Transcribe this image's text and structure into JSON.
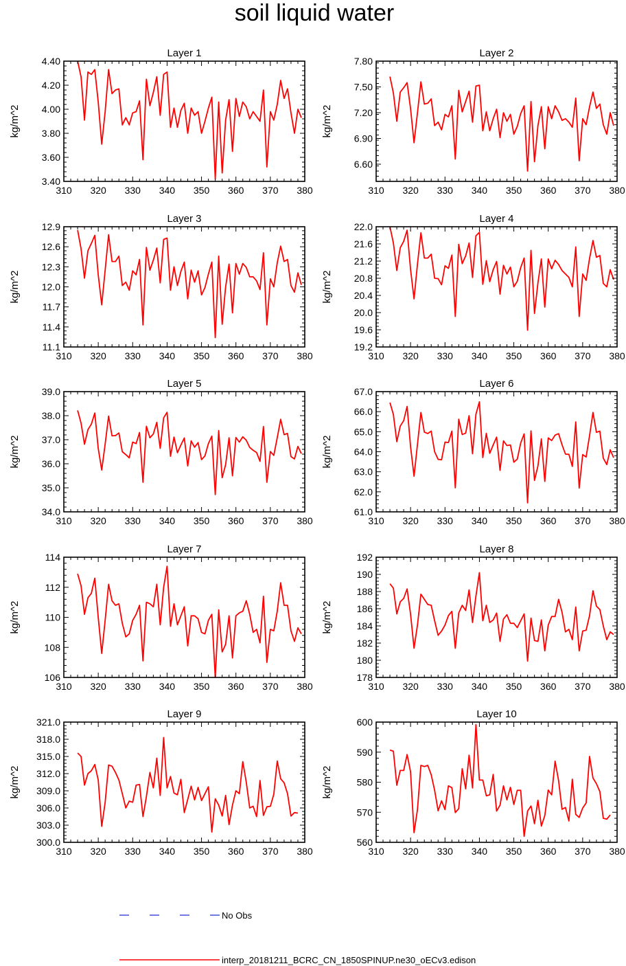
{
  "title": "soil liquid water",
  "legend": {
    "obs_label": "No Obs",
    "obs_color": "#1f2bd6",
    "model_label": "interp_20181211_BCRC_CN_1850SPINUP.ne30_oECv3.edison",
    "model_color": "#ff0000"
  },
  "chart_data": [
    {
      "type": "line",
      "title": "Layer 1",
      "ylabel": "kg/m^2",
      "xlim": [
        310,
        380
      ],
      "ylim": [
        3.4,
        4.4
      ],
      "xticks": [
        "310",
        "320",
        "330",
        "340",
        "350",
        "360",
        "370",
        "380"
      ],
      "yticks": [
        "3.40",
        "3.60",
        "3.80",
        "4.00",
        "4.20",
        "4.40"
      ],
      "x_start": 314,
      "values": [
        4.4,
        4.27,
        3.91,
        4.31,
        4.29,
        4.33,
        4.06,
        3.71,
        3.98,
        4.33,
        4.13,
        4.16,
        4.17,
        3.87,
        3.93,
        3.87,
        3.97,
        3.98,
        4.07,
        3.58,
        4.25,
        4.03,
        4.14,
        4.27,
        3.95,
        4.29,
        4.31,
        3.85,
        4.01,
        3.85,
        3.99,
        4.05,
        3.8,
        4.01,
        3.95,
        3.98,
        3.8,
        3.9,
        4.01,
        4.1,
        3.42,
        4.06,
        3.47,
        3.91,
        4.08,
        3.65,
        4.09,
        3.94,
        4.06,
        4.02,
        3.92,
        3.98,
        3.94,
        3.9,
        4.16,
        3.52,
        3.98,
        3.91,
        4.04,
        4.24,
        4.09,
        4.17,
        3.97,
        3.8,
        4.0,
        3.93
      ]
    },
    {
      "type": "line",
      "title": "Layer 2",
      "ylabel": "kg/m^2",
      "xlim": [
        310,
        380
      ],
      "ylim": [
        6.4,
        7.8
      ],
      "xticks": [
        "310",
        "320",
        "330",
        "340",
        "350",
        "360",
        "370",
        "380"
      ],
      "yticks": [
        "6.60",
        "6.90",
        "7.20",
        "7.50",
        "7.80"
      ],
      "x_start": 314,
      "values": [
        7.62,
        7.43,
        7.1,
        7.44,
        7.49,
        7.55,
        7.25,
        6.85,
        7.2,
        7.56,
        7.3,
        7.31,
        7.36,
        7.05,
        7.09,
        7.0,
        7.18,
        7.15,
        7.28,
        6.66,
        7.46,
        7.21,
        7.33,
        7.45,
        7.09,
        7.51,
        7.52,
        6.99,
        7.21,
        6.99,
        7.13,
        7.24,
        6.91,
        7.2,
        7.1,
        7.18,
        6.95,
        7.04,
        7.19,
        7.28,
        6.52,
        7.33,
        6.63,
        7.05,
        7.27,
        6.78,
        7.27,
        7.13,
        7.28,
        7.21,
        7.11,
        7.13,
        7.09,
        7.03,
        7.37,
        6.64,
        7.13,
        7.06,
        7.27,
        7.44,
        7.25,
        7.3,
        7.06,
        6.95,
        7.2,
        7.05
      ]
    },
    {
      "type": "line",
      "title": "Layer 3",
      "ylabel": "kg/m^2",
      "xlim": [
        310,
        380
      ],
      "ylim": [
        11.1,
        12.9
      ],
      "xticks": [
        "310",
        "320",
        "330",
        "340",
        "350",
        "360",
        "370",
        "380"
      ],
      "yticks": [
        "11.1",
        "11.4",
        "11.7",
        "12.0",
        "12.3",
        "12.6",
        "12.9"
      ],
      "x_start": 314,
      "values": [
        12.85,
        12.57,
        12.13,
        12.54,
        12.65,
        12.77,
        12.18,
        11.73,
        12.25,
        12.78,
        12.38,
        12.38,
        12.46,
        12.02,
        12.07,
        11.95,
        12.24,
        12.18,
        12.41,
        11.43,
        12.59,
        12.25,
        12.4,
        12.58,
        12.06,
        12.71,
        12.73,
        11.95,
        12.3,
        12.02,
        12.23,
        12.37,
        11.82,
        12.25,
        12.07,
        12.24,
        11.88,
        11.99,
        12.19,
        12.37,
        11.24,
        12.46,
        11.44,
        12.0,
        12.34,
        11.61,
        12.35,
        12.19,
        12.35,
        12.29,
        12.15,
        12.15,
        12.09,
        11.96,
        12.51,
        11.43,
        12.12,
        12.0,
        12.36,
        12.61,
        12.38,
        12.41,
        12.02,
        11.92,
        12.21,
        12.03
      ]
    },
    {
      "type": "line",
      "title": "Layer 4",
      "ylabel": "kg/m^2",
      "xlim": [
        310,
        380
      ],
      "ylim": [
        19.2,
        22.0
      ],
      "xticks": [
        "310",
        "320",
        "330",
        "340",
        "350",
        "360",
        "370",
        "380"
      ],
      "yticks": [
        "19.2",
        "19.6",
        "20.0",
        "20.4",
        "20.8",
        "21.2",
        "21.6",
        "22.0"
      ],
      "x_start": 314,
      "values": [
        22.0,
        21.62,
        20.98,
        21.51,
        21.66,
        21.92,
        21.01,
        20.32,
        21.13,
        21.86,
        21.27,
        21.27,
        21.36,
        20.8,
        20.79,
        20.65,
        21.09,
        21.03,
        21.34,
        19.91,
        21.59,
        21.14,
        21.32,
        21.62,
        20.82,
        21.79,
        21.87,
        20.66,
        21.21,
        20.72,
        21.0,
        21.19,
        20.43,
        21.1,
        20.9,
        21.06,
        20.6,
        20.73,
        21.05,
        21.27,
        19.59,
        21.45,
        19.98,
        20.69,
        21.25,
        20.13,
        21.25,
        21.02,
        21.22,
        21.12,
        20.98,
        20.9,
        20.82,
        20.6,
        21.53,
        19.91,
        20.9,
        20.75,
        21.26,
        21.68,
        21.29,
        21.33,
        20.68,
        20.6,
        21.0,
        20.77
      ]
    },
    {
      "type": "line",
      "title": "Layer 5",
      "ylabel": "kg/m^2",
      "xlim": [
        310,
        380
      ],
      "ylim": [
        34.0,
        39.0
      ],
      "xticks": [
        "310",
        "320",
        "330",
        "340",
        "350",
        "360",
        "370",
        "380"
      ],
      "yticks": [
        "34.0",
        "35.0",
        "36.0",
        "37.0",
        "38.0",
        "39.0"
      ],
      "x_start": 314,
      "values": [
        38.22,
        37.69,
        36.81,
        37.42,
        37.65,
        38.11,
        36.64,
        35.74,
        36.82,
        37.98,
        37.16,
        37.17,
        37.28,
        36.5,
        36.38,
        36.25,
        36.9,
        36.84,
        37.3,
        35.23,
        37.56,
        37.08,
        37.24,
        37.72,
        36.64,
        37.91,
        38.14,
        36.31,
        37.11,
        36.46,
        36.78,
        37.07,
        35.91,
        36.95,
        36.69,
        36.88,
        36.17,
        36.33,
        36.84,
        37.15,
        34.72,
        37.38,
        35.42,
        35.96,
        37.08,
        35.5,
        37.09,
        36.9,
        37.12,
        36.98,
        36.68,
        36.56,
        36.47,
        36.1,
        37.55,
        35.23,
        36.51,
        36.35,
        37.08,
        37.85,
        37.21,
        37.26,
        36.3,
        36.2,
        36.72,
        36.42
      ]
    },
    {
      "type": "line",
      "title": "Layer 6",
      "ylabel": "kg/m^2",
      "xlim": [
        310,
        380
      ],
      "ylim": [
        61.0,
        67.0
      ],
      "xticks": [
        "310",
        "320",
        "330",
        "340",
        "350",
        "360",
        "370",
        "380"
      ],
      "yticks": [
        "61.0",
        "62.0",
        "63.0",
        "64.0",
        "65.0",
        "66.0",
        "67.0"
      ],
      "x_start": 314,
      "values": [
        66.45,
        65.86,
        64.5,
        65.28,
        65.55,
        66.26,
        64.27,
        62.78,
        64.37,
        65.96,
        64.98,
        64.91,
        65.03,
        64.0,
        63.62,
        63.6,
        64.48,
        64.46,
        65.03,
        62.2,
        65.62,
        64.86,
        64.93,
        65.8,
        63.9,
        65.88,
        66.49,
        63.71,
        64.92,
        63.92,
        64.34,
        64.73,
        63.07,
        64.54,
        64.31,
        64.34,
        63.48,
        63.63,
        64.44,
        64.89,
        61.45,
        65.04,
        62.57,
        63.29,
        64.64,
        62.52,
        64.69,
        64.56,
        64.83,
        64.9,
        64.35,
        63.88,
        63.87,
        63.27,
        65.49,
        62.19,
        63.86,
        63.74,
        64.8,
        65.96,
        64.97,
        65.03,
        63.68,
        63.36,
        64.1,
        63.7
      ]
    },
    {
      "type": "line",
      "title": "Layer 7",
      "ylabel": "kg/m^2",
      "xlim": [
        310,
        380
      ],
      "ylim": [
        106,
        114
      ],
      "xticks": [
        "310",
        "320",
        "330",
        "340",
        "350",
        "360",
        "370",
        "380"
      ],
      "yticks": [
        "106",
        "108",
        "110",
        "112",
        "114"
      ],
      "x_start": 314,
      "values": [
        112.9,
        112.1,
        110.2,
        111.3,
        111.6,
        112.6,
        110.0,
        107.6,
        109.8,
        112.2,
        111.1,
        110.8,
        110.9,
        109.6,
        108.7,
        108.9,
        109.8,
        110.2,
        110.8,
        107.1,
        111.0,
        110.9,
        110.7,
        112.2,
        109.5,
        112.0,
        113.4,
        109.4,
        110.9,
        109.5,
        110.1,
        110.7,
        108.1,
        110.1,
        110.1,
        109.9,
        109.0,
        108.9,
        109.8,
        110.2,
        106.0,
        110.5,
        107.7,
        108.2,
        110.1,
        107.3,
        110.1,
        110.3,
        110.4,
        111.1,
        110.2,
        109.0,
        109.2,
        108.3,
        111.4,
        107.0,
        109.2,
        109.1,
        110.4,
        112.3,
        110.8,
        110.8,
        109.1,
        108.4,
        109.3,
        108.9
      ]
    },
    {
      "type": "line",
      "title": "Layer 8",
      "ylabel": "kg/m^2",
      "xlim": [
        310,
        380
      ],
      "ylim": [
        178,
        192
      ],
      "xticks": [
        "310",
        "320",
        "330",
        "340",
        "350",
        "360",
        "370",
        "380"
      ],
      "yticks": [
        "178",
        "180",
        "182",
        "184",
        "186",
        "188",
        "190",
        "192"
      ],
      "x_start": 314,
      "values": [
        188.9,
        188.4,
        185.4,
        186.8,
        187.2,
        188.3,
        185.4,
        181.4,
        184.1,
        187.7,
        187.1,
        186.5,
        186.4,
        184.6,
        182.9,
        183.4,
        184.1,
        185.2,
        185.7,
        181.4,
        185.5,
        186.4,
        185.8,
        188.2,
        184.4,
        187.5,
        190.2,
        184.6,
        186.4,
        184.4,
        184.7,
        185.5,
        182.2,
        184.8,
        185.3,
        184.3,
        184.3,
        183.8,
        184.6,
        185.4,
        179.9,
        184.9,
        182.3,
        182.2,
        184.7,
        181.1,
        184.1,
        185.1,
        185.1,
        187.1,
        185.6,
        183.3,
        183.6,
        182.4,
        186.2,
        181.1,
        183.4,
        183.5,
        185.2,
        188.1,
        186.3,
        185.9,
        184.0,
        182.4,
        183.3,
        183.0
      ]
    },
    {
      "type": "line",
      "title": "Layer 9",
      "ylabel": "kg/m^2",
      "xlim": [
        310,
        380
      ],
      "ylim": [
        300.0,
        321.0
      ],
      "xticks": [
        "310",
        "320",
        "330",
        "340",
        "350",
        "360",
        "370",
        "380"
      ],
      "yticks": [
        "300.0",
        "303.0",
        "306.0",
        "309.0",
        "312.0",
        "315.0",
        "318.0",
        "321.0"
      ],
      "x_start": 314,
      "values": [
        315.6,
        315.0,
        310.0,
        312.0,
        312.5,
        313.6,
        310.9,
        302.8,
        307.0,
        313.5,
        313.3,
        312.2,
        310.9,
        308.5,
        306.0,
        307.2,
        307.0,
        310.0,
        310.1,
        304.5,
        308.0,
        312.2,
        309.5,
        314.7,
        308.2,
        318.3,
        309.5,
        311.5,
        308.6,
        308.3,
        311.0,
        305.2,
        307.5,
        309.8,
        307.4,
        309.6,
        307.3,
        308.5,
        309.7,
        301.8,
        307.6,
        306.5,
        304.6,
        308.2,
        303.1,
        306.5,
        309.0,
        308.5,
        314.1,
        310.5,
        306.0,
        306.3,
        304.5,
        310.8,
        304.7,
        306.2,
        306.3,
        308.4,
        314.2,
        311.1,
        310.4,
        308.5,
        304.6,
        305.2,
        305.1
      ]
    },
    {
      "type": "line",
      "title": "Layer 10",
      "ylabel": "kg/m^2",
      "xlim": [
        310,
        380
      ],
      "ylim": [
        560,
        600
      ],
      "xticks": [
        "310",
        "320",
        "330",
        "340",
        "350",
        "360",
        "370",
        "380"
      ],
      "yticks": [
        "560",
        "570",
        "580",
        "590",
        "600"
      ],
      "x_start": 314,
      "values": [
        590.7,
        590.3,
        579.0,
        583.9,
        583.9,
        589.2,
        583.5,
        563.2,
        570.9,
        585.6,
        585.2,
        585.6,
        582.5,
        577.3,
        570.5,
        573.8,
        570.9,
        578.8,
        578.2,
        569.9,
        571.2,
        584.5,
        577.8,
        589.0,
        578.1,
        599.2,
        580.7,
        580.7,
        575.5,
        575.8,
        582.6,
        570.4,
        572.4,
        578.8,
        574.1,
        578.3,
        572.6,
        577.3,
        577.3,
        562.0,
        570.4,
        572.1,
        566.2,
        574.0,
        565.4,
        568.9,
        577.4,
        575.8,
        587.0,
        580.5,
        571.0,
        571.6,
        567.1,
        581.0,
        569.3,
        568.3,
        571.4,
        573.1,
        588.6,
        581.4,
        579.5,
        576.9,
        568.0,
        567.7,
        569.1
      ]
    }
  ]
}
